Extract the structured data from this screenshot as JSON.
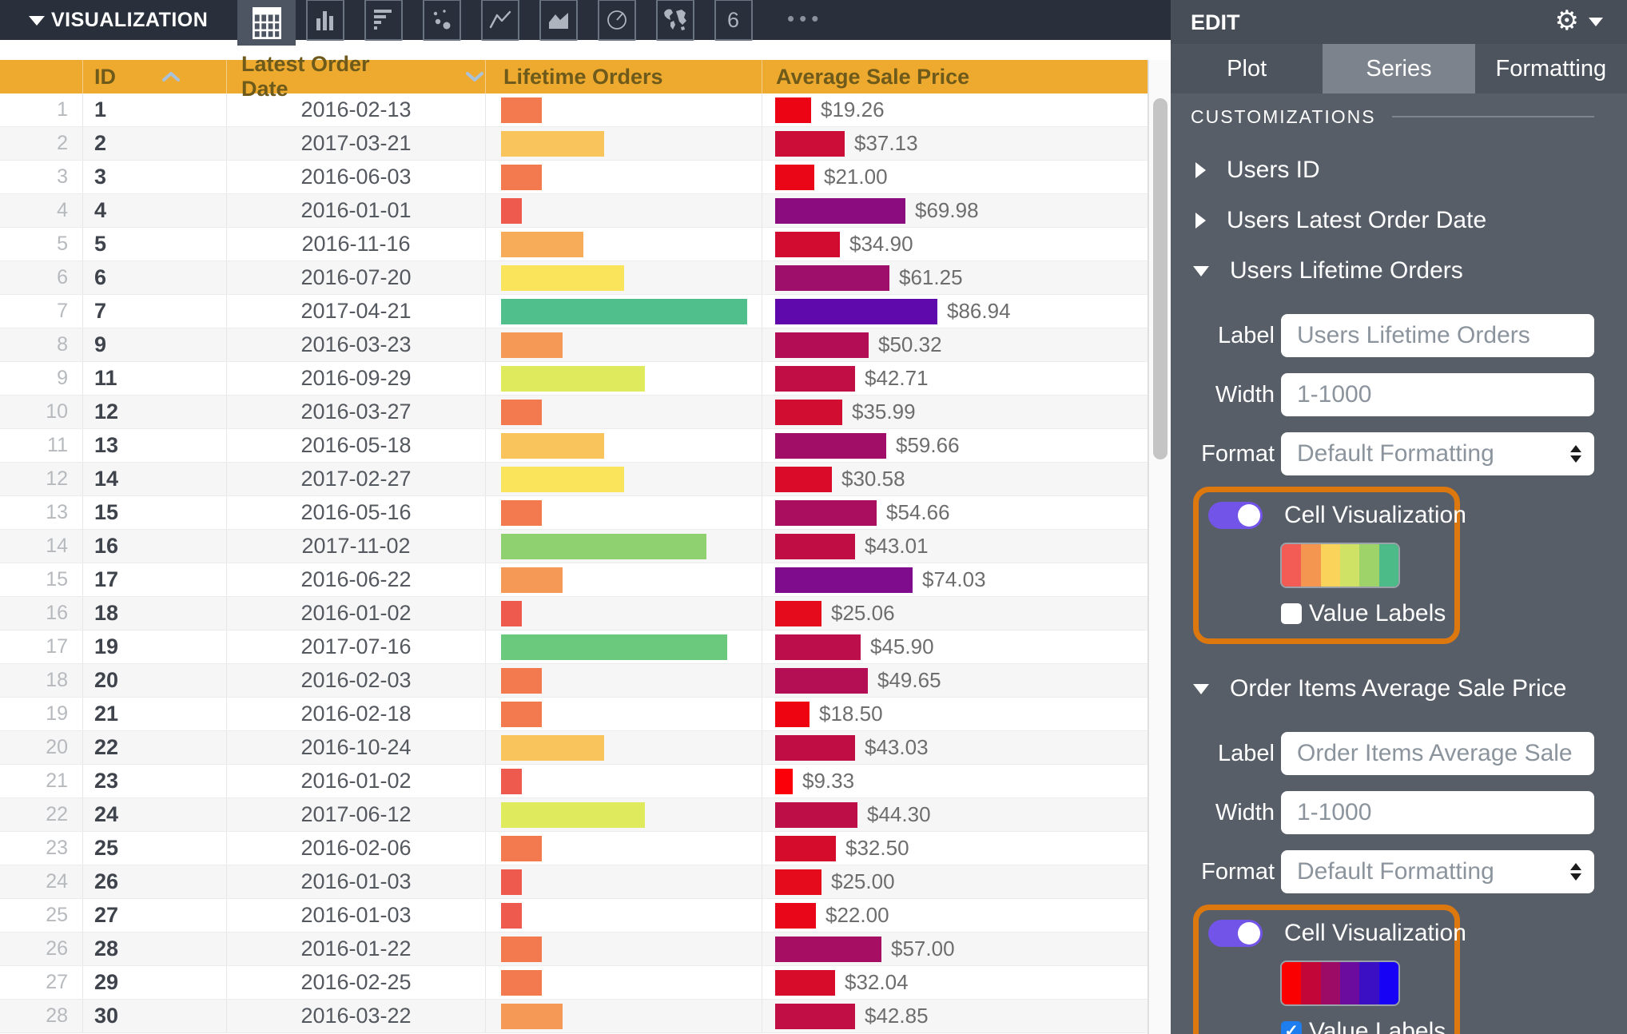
{
  "toolbar": {
    "title": "VISUALIZATION",
    "vis_types": [
      {
        "name": "table",
        "selected": true
      },
      {
        "name": "column",
        "selected": false
      },
      {
        "name": "bar",
        "selected": false
      },
      {
        "name": "scatterplot",
        "selected": false
      },
      {
        "name": "line",
        "selected": false
      },
      {
        "name": "area",
        "selected": false
      },
      {
        "name": "pie",
        "selected": false
      },
      {
        "name": "map",
        "selected": false
      },
      {
        "name": "single-value",
        "selected": false
      }
    ],
    "more_label": "•••"
  },
  "table": {
    "columns": [
      {
        "label": "ID",
        "sort": "asc"
      },
      {
        "label": "Latest Order Date",
        "sort": "desc"
      },
      {
        "label": "Lifetime Orders",
        "sort": null
      },
      {
        "label": "Average Sale Price",
        "sort": null
      }
    ],
    "rows": [
      {
        "n": 1,
        "id": "1",
        "date": "2016-02-13",
        "orders": 2,
        "orders_color": "#f3794f",
        "price": 19.26,
        "price_label": "$19.26",
        "price_color": "#ec0414"
      },
      {
        "n": 2,
        "id": "2",
        "date": "2017-03-21",
        "orders": 5,
        "orders_color": "#f9c45c",
        "price": 37.13,
        "price_label": "$37.13",
        "price_color": "#cb0d38"
      },
      {
        "n": 3,
        "id": "3",
        "date": "2016-06-03",
        "orders": 2,
        "orders_color": "#f3794f",
        "price": 21.0,
        "price_label": "$21.00",
        "price_color": "#ea0517"
      },
      {
        "n": 4,
        "id": "4",
        "date": "2016-01-01",
        "orders": 1,
        "orders_color": "#ee5a4e",
        "price": 69.98,
        "price_label": "$69.98",
        "price_color": "#8a0c7f"
      },
      {
        "n": 5,
        "id": "5",
        "date": "2016-11-16",
        "orders": 4,
        "orders_color": "#f7ac59",
        "price": 34.9,
        "price_label": "$34.90",
        "price_color": "#d20c30"
      },
      {
        "n": 6,
        "id": "6",
        "date": "2016-07-20",
        "orders": 6,
        "orders_color": "#f9e45c",
        "price": 61.25,
        "price_label": "$61.25",
        "price_color": "#9d0f6b"
      },
      {
        "n": 7,
        "id": "7",
        "date": "2017-04-21",
        "orders": 12,
        "orders_color": "#50bf8b",
        "price": 86.94,
        "price_label": "$86.94",
        "price_color": "#5f08ab"
      },
      {
        "n": 8,
        "id": "9",
        "date": "2016-03-23",
        "orders": 3,
        "orders_color": "#f59956",
        "price": 50.32,
        "price_label": "$50.32",
        "price_color": "#b30e55"
      },
      {
        "n": 9,
        "id": "11",
        "date": "2016-09-29",
        "orders": 7,
        "orders_color": "#dfeb5d",
        "price": 42.71,
        "price_label": "$42.71",
        "price_color": "#c10e44"
      },
      {
        "n": 10,
        "id": "12",
        "date": "2016-03-27",
        "orders": 2,
        "orders_color": "#f3794f",
        "price": 35.99,
        "price_label": "$35.99",
        "price_color": "#d10d32"
      },
      {
        "n": 11,
        "id": "13",
        "date": "2016-05-18",
        "orders": 5,
        "orders_color": "#f9c45c",
        "price": 59.66,
        "price_label": "$59.66",
        "price_color": "#a00e68"
      },
      {
        "n": 12,
        "id": "14",
        "date": "2017-02-27",
        "orders": 6,
        "orders_color": "#f9e45c",
        "price": 30.58,
        "price_label": "$30.58",
        "price_color": "#d90b28"
      },
      {
        "n": 13,
        "id": "15",
        "date": "2016-05-16",
        "orders": 2,
        "orders_color": "#f3794f",
        "price": 54.66,
        "price_label": "$54.66",
        "price_color": "#aa0e5e"
      },
      {
        "n": 14,
        "id": "16",
        "date": "2017-11-02",
        "orders": 10,
        "orders_color": "#8fd170",
        "price": 43.01,
        "price_label": "$43.01",
        "price_color": "#c00e45"
      },
      {
        "n": 15,
        "id": "17",
        "date": "2016-06-22",
        "orders": 3,
        "orders_color": "#f59956",
        "price": 74.03,
        "price_label": "$74.03",
        "price_color": "#7f0b8d"
      },
      {
        "n": 16,
        "id": "18",
        "date": "2016-01-02",
        "orders": 1,
        "orders_color": "#ee5a4e",
        "price": 25.06,
        "price_label": "$25.06",
        "price_color": "#e60a1d"
      },
      {
        "n": 17,
        "id": "19",
        "date": "2017-07-16",
        "orders": 11,
        "orders_color": "#6bc97d",
        "price": 45.9,
        "price_label": "$45.90",
        "price_color": "#bb0e4b"
      },
      {
        "n": 18,
        "id": "20",
        "date": "2016-02-03",
        "orders": 2,
        "orders_color": "#f3794f",
        "price": 49.65,
        "price_label": "$49.65",
        "price_color": "#b40e54"
      },
      {
        "n": 19,
        "id": "21",
        "date": "2016-02-18",
        "orders": 2,
        "orders_color": "#f3794f",
        "price": 18.5,
        "price_label": "$18.50",
        "price_color": "#ee0310"
      },
      {
        "n": 20,
        "id": "22",
        "date": "2016-10-24",
        "orders": 5,
        "orders_color": "#f9c45c",
        "price": 43.03,
        "price_label": "$43.03",
        "price_color": "#c00e45"
      },
      {
        "n": 21,
        "id": "23",
        "date": "2016-01-02",
        "orders": 1,
        "orders_color": "#ee5a4e",
        "price": 9.33,
        "price_label": "$9.33",
        "price_color": "#fb0008"
      },
      {
        "n": 22,
        "id": "24",
        "date": "2017-06-12",
        "orders": 7,
        "orders_color": "#dfeb5d",
        "price": 44.3,
        "price_label": "$44.30",
        "price_color": "#be0e48"
      },
      {
        "n": 23,
        "id": "25",
        "date": "2016-02-06",
        "orders": 2,
        "orders_color": "#f3794f",
        "price": 32.5,
        "price_label": "$32.50",
        "price_color": "#d60c2c"
      },
      {
        "n": 24,
        "id": "26",
        "date": "2016-01-03",
        "orders": 1,
        "orders_color": "#ee5a4e",
        "price": 25.0,
        "price_label": "$25.00",
        "price_color": "#e60a1d"
      },
      {
        "n": 25,
        "id": "27",
        "date": "2016-01-03",
        "orders": 1,
        "orders_color": "#ee5a4e",
        "price": 22.0,
        "price_label": "$22.00",
        "price_color": "#e90619"
      },
      {
        "n": 26,
        "id": "28",
        "date": "2016-01-22",
        "orders": 2,
        "orders_color": "#f3794f",
        "price": 57.0,
        "price_label": "$57.00",
        "price_color": "#a50e63"
      },
      {
        "n": 27,
        "id": "29",
        "date": "2016-02-25",
        "orders": 2,
        "orders_color": "#f3794f",
        "price": 32.04,
        "price_label": "$32.04",
        "price_color": "#d70c2b"
      },
      {
        "n": 28,
        "id": "30",
        "date": "2016-03-22",
        "orders": 3,
        "orders_color": "#f59956",
        "price": 42.85,
        "price_label": "$42.85",
        "price_color": "#c10e44"
      }
    ]
  },
  "panel": {
    "title": "EDIT",
    "tabs": [
      {
        "label": "Plot",
        "selected": false
      },
      {
        "label": "Series",
        "selected": true
      },
      {
        "label": "Formatting",
        "selected": false
      }
    ],
    "customizations_heading": "CUSTOMIZATIONS",
    "series": [
      {
        "label": "Users ID",
        "expanded": false
      },
      {
        "label": "Users Latest Order Date",
        "expanded": false
      },
      {
        "label": "Users Lifetime Orders",
        "expanded": true,
        "fields": [
          {
            "label": "Label",
            "type": "input",
            "placeholder": "Users Lifetime Orders"
          },
          {
            "label": "Width",
            "type": "input",
            "placeholder": "1-1000"
          },
          {
            "label": "Format",
            "type": "select",
            "value": "Default Formatting"
          }
        ],
        "cell_visualization": {
          "label": "Cell Visualization",
          "enabled": true,
          "highlighted": true,
          "palette": [
            "#f25c54",
            "#f4964f",
            "#fad45a",
            "#cfe266",
            "#9ed36a",
            "#4cbb88"
          ],
          "value_labels": {
            "label": "Value Labels",
            "checked": false
          }
        }
      },
      {
        "label": "Order Items Average Sale Price",
        "expanded": true,
        "fields": [
          {
            "label": "Label",
            "type": "input",
            "placeholder": "Order Items Average Sale Price"
          },
          {
            "label": "Width",
            "type": "input",
            "placeholder": "1-1000"
          },
          {
            "label": "Format",
            "type": "select",
            "value": "Default Formatting"
          }
        ],
        "cell_visualization": {
          "label": "Cell Visualization",
          "enabled": true,
          "highlighted": true,
          "palette": [
            "#fa0000",
            "#c20738",
            "#9c0b66",
            "#6b0c9e",
            "#3b10c4",
            "#1802f5"
          ],
          "value_labels": {
            "label": "Value Labels",
            "checked": true
          }
        }
      }
    ]
  },
  "colors": {
    "toolbar_bg": "#2a303b",
    "table_header_bg": "#edaa2f",
    "panel_bg": "#575e67",
    "highlight_orange": "#dd780f",
    "toggle_on_purple": "#7254e8",
    "checkbox_blue": "#1e7ef0"
  }
}
